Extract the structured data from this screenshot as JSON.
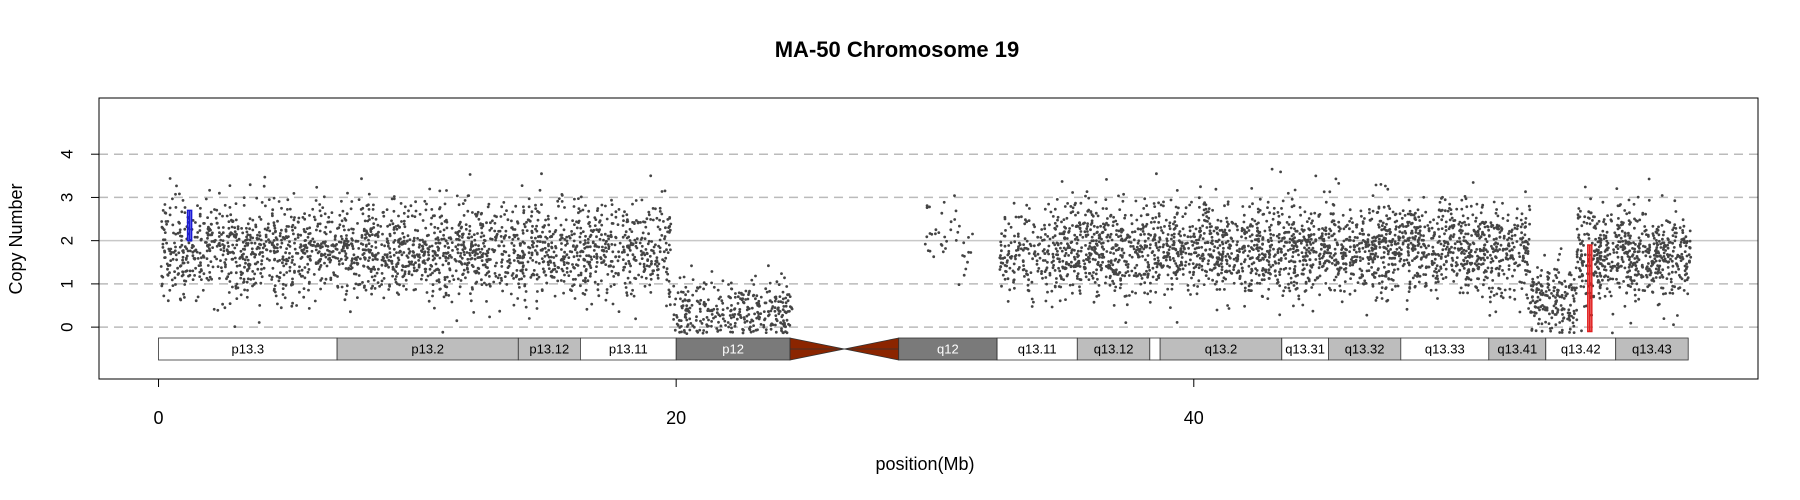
{
  "chart_data": {
    "type": "scatter",
    "title": "MA-50  Chromosome 19",
    "xlabel": "position(Mb)",
    "ylabel": "Copy Number",
    "xlim": [
      -2.3,
      61.8
    ],
    "ylim": [
      -1.2,
      5.3
    ],
    "x_ticks": [
      0,
      20,
      40
    ],
    "y_ticks": [
      0,
      1,
      2,
      3,
      4
    ],
    "reference_lines": {
      "solid": [
        2
      ],
      "dashed": [
        0,
        1,
        3,
        4
      ]
    },
    "colors": {
      "points": "#444444",
      "gain_segment": "#1a1ad6",
      "loss_segment": "#e02020",
      "centromere": "#8b2500",
      "band_white": "#ffffff",
      "band_light": "#bdbdbd",
      "band_dark": "#7a7a7a",
      "grid_dashed": "#bbbbbb",
      "grid_solid": "#c8c8c8"
    },
    "segments": [
      {
        "kind": "gain",
        "x": 1.2,
        "y_range": [
          2.0,
          2.7
        ]
      },
      {
        "kind": "loss",
        "x": 55.3,
        "y_range": [
          -0.1,
          1.9
        ]
      }
    ],
    "point_clusters": [
      {
        "x_range": [
          0.1,
          19.8
        ],
        "mean": 1.8,
        "sd": 0.55,
        "count": 2200
      },
      {
        "x_range": [
          19.9,
          24.5
        ],
        "mean": 0.4,
        "sd": 0.35,
        "count": 330
      },
      {
        "x_range": [
          29.6,
          31.5
        ],
        "mean": 2.2,
        "sd": 0.55,
        "count": 40
      },
      {
        "x_range": [
          32.5,
          34.5
        ],
        "mean": 1.7,
        "sd": 0.5,
        "count": 160
      },
      {
        "x_range": [
          34.5,
          53.0
        ],
        "mean": 1.8,
        "sd": 0.55,
        "count": 2400
      },
      {
        "x_range": [
          53.0,
          54.8
        ],
        "mean": 0.7,
        "sd": 0.4,
        "count": 180
      },
      {
        "x_range": [
          54.8,
          59.2
        ],
        "mean": 1.7,
        "sd": 0.55,
        "count": 600
      }
    ],
    "ideogram": [
      {
        "label": "p13.3",
        "start": 0.0,
        "end": 6.9,
        "stain": "white"
      },
      {
        "label": "p13.2",
        "start": 6.9,
        "end": 13.9,
        "stain": "light"
      },
      {
        "label": "p13.12",
        "start": 13.9,
        "end": 16.3,
        "stain": "light"
      },
      {
        "label": "p13.11",
        "start": 16.3,
        "end": 20.0,
        "stain": "white"
      },
      {
        "label": "p12",
        "start": 20.0,
        "end": 24.4,
        "stain": "dark"
      },
      {
        "label": "",
        "start": 24.4,
        "end": 28.6,
        "stain": "centromere"
      },
      {
        "label": "q12",
        "start": 28.6,
        "end": 32.4,
        "stain": "dark"
      },
      {
        "label": "q13.11",
        "start": 32.4,
        "end": 35.5,
        "stain": "white"
      },
      {
        "label": "q13.12",
        "start": 35.5,
        "end": 38.3,
        "stain": "light"
      },
      {
        "label": "",
        "start": 38.3,
        "end": 38.7,
        "stain": "white"
      },
      {
        "label": "q13.2",
        "start": 38.7,
        "end": 43.4,
        "stain": "light"
      },
      {
        "label": "q13.31",
        "start": 43.4,
        "end": 45.2,
        "stain": "white"
      },
      {
        "label": "q13.32",
        "start": 45.2,
        "end": 48.0,
        "stain": "light"
      },
      {
        "label": "q13.33",
        "start": 48.0,
        "end": 51.4,
        "stain": "white"
      },
      {
        "label": "q13.41",
        "start": 51.4,
        "end": 53.6,
        "stain": "light"
      },
      {
        "label": "q13.42",
        "start": 53.6,
        "end": 56.3,
        "stain": "white"
      },
      {
        "label": "q13.43",
        "start": 56.3,
        "end": 59.1,
        "stain": "light"
      }
    ]
  }
}
